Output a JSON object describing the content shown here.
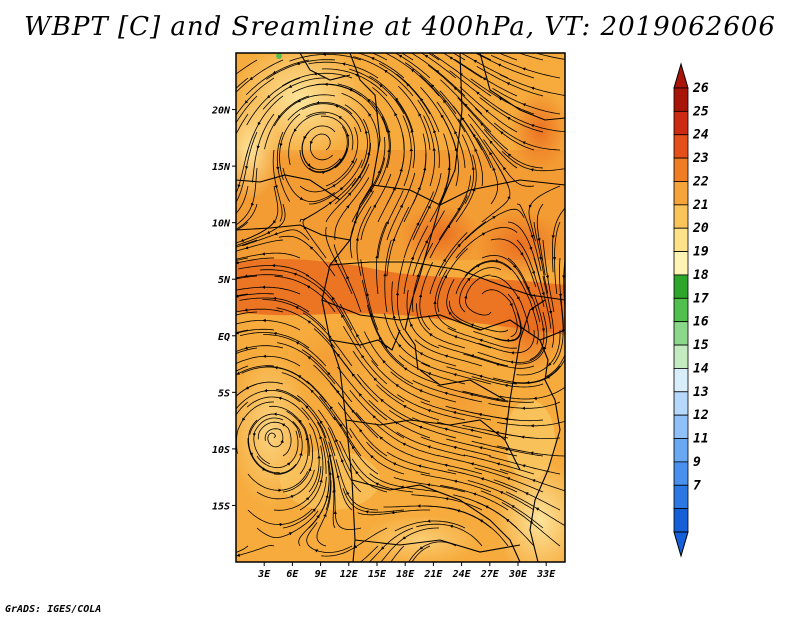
{
  "title": "WBPT [C] and Sreamline at 400hPa, VT: 2019062606",
  "footer": "GrADS: IGES/COLA",
  "map": {
    "lon_range": [
      0,
      35
    ],
    "lat_range": [
      -20,
      25
    ],
    "lon_ticks": [
      3,
      6,
      9,
      12,
      15,
      18,
      21,
      24,
      27,
      30,
      33
    ],
    "lon_labels": [
      "3E",
      "6E",
      "9E",
      "12E",
      "15E",
      "18E",
      "21E",
      "24E",
      "27E",
      "30E",
      "33E"
    ],
    "lat_ticks": [
      20,
      15,
      10,
      5,
      0,
      -5,
      -10,
      -15
    ],
    "lat_labels": [
      "20N",
      "15N",
      "10N",
      "5N",
      "EQ",
      "5S",
      "10S",
      "15S"
    ],
    "field_colors": {
      "c19": "#fde7a0",
      "c20": "#fbd06e",
      "c21": "#f6ab3c",
      "c22": "#f18f2c",
      "c23": "#ea6b1f"
    }
  },
  "colorbar": {
    "labels": [
      "7",
      "9",
      "11",
      "12",
      "13",
      "14",
      "15",
      "16",
      "17",
      "18",
      "19",
      "20",
      "21",
      "22",
      "23",
      "24",
      "25",
      "26"
    ],
    "colors": [
      "#1560d8",
      "#2b78e4",
      "#4a90ee",
      "#6aa8f4",
      "#8fc0f8",
      "#b5d8fb",
      "#d9eefb",
      "#c2ebc0",
      "#8cd88a",
      "#52c04f",
      "#2ea62b",
      "#fff4b3",
      "#fde28a",
      "#fbc45a",
      "#f5a43a",
      "#f07c24",
      "#e44f1a",
      "#cc2a12",
      "#a81408"
    ],
    "low_arrow_color": "#1560d8",
    "high_arrow_color": "#a81408"
  }
}
